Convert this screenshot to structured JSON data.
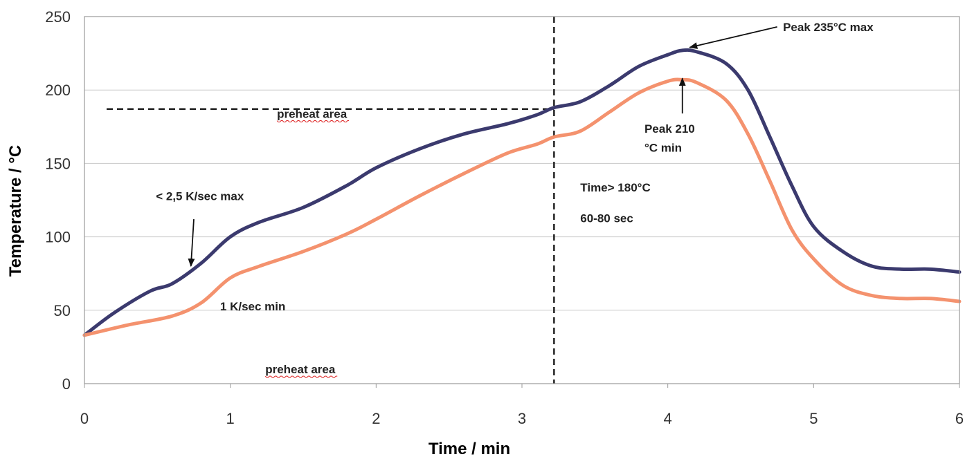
{
  "chart_data": {
    "type": "line",
    "xlabel": "Time / min",
    "ylabel": "Temperature / °C",
    "xlim": [
      0,
      6
    ],
    "ylim": [
      0,
      250
    ],
    "x_ticks": [
      "0",
      "1",
      "2",
      "3",
      "4",
      "5",
      "6"
    ],
    "y_ticks": [
      "0",
      "50",
      "100",
      "150",
      "200",
      "250"
    ],
    "grid": "horizontal",
    "series": [
      {
        "color": "#3b3a6e",
        "points": [
          [
            0,
            33
          ],
          [
            0.2,
            48
          ],
          [
            0.45,
            63
          ],
          [
            0.6,
            68
          ],
          [
            0.8,
            82
          ],
          [
            1.0,
            100
          ],
          [
            1.2,
            110
          ],
          [
            1.5,
            120
          ],
          [
            1.8,
            135
          ],
          [
            2.0,
            147
          ],
          [
            2.3,
            160
          ],
          [
            2.6,
            170
          ],
          [
            2.9,
            177
          ],
          [
            3.1,
            183
          ],
          [
            3.22,
            188
          ],
          [
            3.4,
            192
          ],
          [
            3.6,
            203
          ],
          [
            3.8,
            216
          ],
          [
            4.0,
            224
          ],
          [
            4.1,
            227
          ],
          [
            4.2,
            226
          ],
          [
            4.4,
            218
          ],
          [
            4.55,
            200
          ],
          [
            4.7,
            168
          ],
          [
            4.85,
            135
          ],
          [
            5.0,
            107
          ],
          [
            5.2,
            90
          ],
          [
            5.4,
            80
          ],
          [
            5.6,
            78
          ],
          [
            5.8,
            78
          ],
          [
            6.0,
            76
          ]
        ]
      },
      {
        "color": "#f4926e",
        "points": [
          [
            0,
            33
          ],
          [
            0.3,
            40
          ],
          [
            0.6,
            46
          ],
          [
            0.8,
            55
          ],
          [
            1.0,
            72
          ],
          [
            1.2,
            80
          ],
          [
            1.5,
            90
          ],
          [
            1.8,
            102
          ],
          [
            2.0,
            112
          ],
          [
            2.3,
            128
          ],
          [
            2.6,
            143
          ],
          [
            2.9,
            157
          ],
          [
            3.1,
            163
          ],
          [
            3.22,
            168
          ],
          [
            3.4,
            172
          ],
          [
            3.6,
            185
          ],
          [
            3.8,
            198
          ],
          [
            4.0,
            206
          ],
          [
            4.1,
            207
          ],
          [
            4.2,
            205
          ],
          [
            4.4,
            193
          ],
          [
            4.55,
            170
          ],
          [
            4.7,
            138
          ],
          [
            4.85,
            105
          ],
          [
            5.0,
            85
          ],
          [
            5.2,
            67
          ],
          [
            5.4,
            60
          ],
          [
            5.6,
            58
          ],
          [
            5.8,
            58
          ],
          [
            6.0,
            56
          ]
        ]
      }
    ],
    "reference_lines": [
      {
        "orientation": "vertical",
        "x": 3.22,
        "style": "dashed"
      },
      {
        "orientation": "horizontal",
        "y": 187,
        "x_range": [
          0,
          3.22
        ],
        "style": "dashed"
      }
    ],
    "annotations": [
      {
        "text": "preheat area",
        "x": 1.32,
        "y": 181,
        "underline": true
      },
      {
        "text": "preheat area",
        "x": 1.24,
        "y": 7,
        "underline": true
      },
      {
        "text": "< 2,5 K/sec max",
        "x": 0.49,
        "y": 125
      },
      {
        "text": "1 K/sec min",
        "x": 0.93,
        "y": 50
      },
      {
        "text": "Time> 180°C",
        "x": 3.4,
        "y": 131
      },
      {
        "text": "60-80 sec",
        "x": 3.4,
        "y": 110
      },
      {
        "text": "Peak 235°C max",
        "x": 4.79,
        "y": 240
      },
      {
        "text": "Peak 210",
        "x": 3.84,
        "y": 171
      },
      {
        "text": "°C min",
        "x": 3.84,
        "y": 158
      }
    ],
    "arrows": [
      {
        "from": [
          0.75,
          112
        ],
        "to": [
          0.73,
          80
        ]
      },
      {
        "from": [
          4.75,
          243
        ],
        "to": [
          4.15,
          229
        ]
      },
      {
        "from": [
          4.1,
          184
        ],
        "to": [
          4.1,
          208
        ]
      }
    ]
  }
}
